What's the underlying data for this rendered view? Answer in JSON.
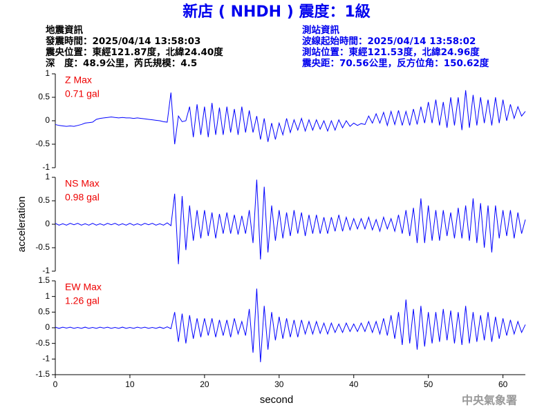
{
  "header": {
    "title": "新店 ( NHDH ) 震度：1級",
    "event": [
      "地震資訊",
      "發震時間：2025/04/14 13:58:03",
      "震央位置：東經121.87度，北緯24.40度",
      "深　度：48.9公里，芮氏規模：4.5"
    ],
    "station": [
      "測站資訊",
      "波線起始時間：2025/04/14 13:58:02",
      "測站位置：東經121.53度，北緯24.96度",
      "震央距：70.56公里，反方位角：150.62度"
    ]
  },
  "footer": "中央氣象署",
  "chart_data": [
    {
      "type": "line",
      "annotations": [
        "Z Max",
        "0.71 gal"
      ],
      "color": "#0000ff",
      "xlim": [
        0,
        63
      ],
      "ylim": [
        -1,
        1
      ],
      "yticks": [
        -1,
        -0.5,
        0,
        0.5,
        1
      ],
      "x": [
        0,
        0.5,
        1,
        1.5,
        2,
        2.5,
        3,
        3.5,
        4,
        4.5,
        5,
        5.5,
        6,
        6.5,
        7,
        7.5,
        8,
        8.5,
        9,
        9.5,
        10,
        10.5,
        11,
        11.5,
        12,
        12.5,
        13,
        13.5,
        14,
        14.5,
        15,
        15.5,
        16,
        16.5,
        17,
        17.5,
        18,
        18.5,
        19,
        19.5,
        20,
        20.5,
        21,
        21.5,
        22,
        22.5,
        23,
        23.5,
        24,
        24.5,
        25,
        25.5,
        26,
        26.5,
        27,
        27.5,
        28,
        28.5,
        29,
        29.5,
        30,
        30.5,
        31,
        31.5,
        32,
        32.5,
        33,
        33.5,
        34,
        34.5,
        35,
        35.5,
        36,
        36.5,
        37,
        37.5,
        38,
        38.5,
        39,
        39.5,
        40,
        40.5,
        41,
        41.5,
        42,
        42.5,
        43,
        43.5,
        44,
        44.5,
        45,
        45.5,
        46,
        46.5,
        47,
        47.5,
        48,
        48.5,
        49,
        49.5,
        50,
        50.5,
        51,
        51.5,
        52,
        52.5,
        53,
        53.5,
        54,
        54.5,
        55,
        55.5,
        56,
        56.5,
        57,
        57.5,
        58,
        58.5,
        59,
        59.5,
        60,
        60.5,
        61,
        61.5,
        62,
        62.5,
        63
      ],
      "values": [
        -0.08,
        -0.1,
        -0.11,
        -0.12,
        -0.11,
        -0.12,
        -0.1,
        -0.08,
        -0.05,
        -0.04,
        -0.03,
        0.03,
        0.05,
        0.06,
        0.07,
        0.08,
        0.07,
        0.06,
        0.07,
        0.06,
        0.06,
        0.05,
        0.06,
        0.05,
        0.04,
        0.03,
        0.02,
        0.01,
        0,
        -0.02,
        -0.03,
        0.6,
        -0.5,
        0.1,
        -0.02,
        0,
        0.3,
        -0.35,
        0.35,
        -0.3,
        0.3,
        -0.35,
        0.38,
        -0.3,
        0.28,
        -0.3,
        0.3,
        -0.25,
        0.25,
        -0.3,
        0.3,
        -0.25,
        0.22,
        -0.25,
        0.1,
        -0.4,
        0.05,
        -0.45,
        -0.05,
        -0.4,
        -0.05,
        -0.3,
        0.05,
        -0.25,
        0.02,
        -0.2,
        0.05,
        -0.22,
        0.02,
        -0.2,
        0.02,
        -0.18,
        0,
        -0.22,
        0,
        -0.2,
        0.02,
        -0.15,
        0,
        -0.12,
        -0.05,
        -0.1,
        -0.06,
        -0.08,
        0.1,
        -0.05,
        0.15,
        -0.05,
        0.18,
        -0.1,
        0.2,
        -0.08,
        0.22,
        -0.1,
        0.2,
        -0.1,
        0.25,
        -0.08,
        0.3,
        -0.05,
        0.4,
        -0.05,
        0.45,
        -0.1,
        0.4,
        -0.15,
        0.5,
        -0.1,
        0.5,
        -0.2,
        0.65,
        -0.15,
        0.55,
        -0.1,
        0.5,
        -0.05,
        0.45,
        -0.1,
        0.5,
        -0.05,
        0.45,
        0,
        0.35,
        0.05,
        0.3,
        0.1,
        0.2
      ]
    },
    {
      "type": "line",
      "annotations": [
        "NS Max",
        "0.98 gal"
      ],
      "ylabel": "acceleration",
      "color": "#0000ff",
      "xlim": [
        0,
        63
      ],
      "ylim": [
        -1,
        1
      ],
      "yticks": [
        -1,
        -0.5,
        0,
        0.5,
        1
      ],
      "x": [
        0,
        0.5,
        1,
        1.5,
        2,
        2.5,
        3,
        3.5,
        4,
        4.5,
        5,
        5.5,
        6,
        6.5,
        7,
        7.5,
        8,
        8.5,
        9,
        9.5,
        10,
        10.5,
        11,
        11.5,
        12,
        12.5,
        13,
        13.5,
        14,
        14.5,
        15,
        15.5,
        16,
        16.5,
        17,
        17.5,
        18,
        18.5,
        19,
        19.5,
        20,
        20.5,
        21,
        21.5,
        22,
        22.5,
        23,
        23.5,
        24,
        24.5,
        25,
        25.5,
        26,
        26.5,
        27,
        27.5,
        28,
        28.5,
        29,
        29.5,
        30,
        30.5,
        31,
        31.5,
        32,
        32.5,
        33,
        33.5,
        34,
        34.5,
        35,
        35.5,
        36,
        36.5,
        37,
        37.5,
        38,
        38.5,
        39,
        39.5,
        40,
        40.5,
        41,
        41.5,
        42,
        42.5,
        43,
        43.5,
        44,
        44.5,
        45,
        45.5,
        46,
        46.5,
        47,
        47.5,
        48,
        48.5,
        49,
        49.5,
        50,
        50.5,
        51,
        51.5,
        52,
        52.5,
        53,
        53.5,
        54,
        54.5,
        55,
        55.5,
        56,
        56.5,
        57,
        57.5,
        58,
        58.5,
        59,
        59.5,
        60,
        60.5,
        61,
        61.5,
        62,
        62.5,
        63
      ],
      "values": [
        0.02,
        -0.02,
        0.01,
        -0.02,
        0.02,
        -0.01,
        0.02,
        -0.02,
        0.01,
        -0.02,
        0.02,
        -0.02,
        0.01,
        -0.02,
        0.02,
        -0.01,
        0.02,
        -0.02,
        0.01,
        -0.02,
        0.02,
        -0.02,
        0.01,
        -0.02,
        0.02,
        -0.01,
        0.02,
        -0.02,
        0.01,
        -0.02,
        0.03,
        -0.03,
        0.65,
        -0.85,
        0.6,
        -0.55,
        0.4,
        -0.35,
        0.3,
        -0.3,
        0.3,
        -0.25,
        0.25,
        -0.3,
        0.22,
        -0.2,
        0.25,
        -0.2,
        0.2,
        -0.22,
        0.18,
        -0.2,
        0.3,
        -0.4,
        0.95,
        -0.75,
        0.8,
        -0.6,
        0.4,
        -0.35,
        0.3,
        -0.3,
        0.25,
        -0.25,
        0.3,
        -0.2,
        0.25,
        -0.25,
        0.2,
        -0.2,
        0.2,
        -0.2,
        0.15,
        -0.2,
        0.15,
        -0.15,
        0.2,
        -0.15,
        0.15,
        -0.12,
        0.12,
        -0.1,
        0.12,
        -0.1,
        0.15,
        -0.12,
        0.1,
        -0.15,
        0.15,
        -0.1,
        0.12,
        -0.15,
        0.2,
        -0.2,
        0.3,
        -0.25,
        0.35,
        -0.4,
        0.55,
        -0.4,
        0.4,
        -0.35,
        0.3,
        -0.35,
        0.3,
        -0.25,
        0.25,
        -0.3,
        0.35,
        -0.3,
        0.4,
        -0.35,
        0.55,
        -0.4,
        0.45,
        -0.5,
        0.4,
        -0.6,
        0.4,
        -0.3,
        0.3,
        -0.25,
        0.3,
        -0.3,
        0.25,
        -0.2,
        0.1
      ]
    },
    {
      "type": "line",
      "annotations": [
        "EW Max",
        "1.26 gal"
      ],
      "xlabel": "second",
      "color": "#0000ff",
      "xlim": [
        0,
        63
      ],
      "xticks": [
        0,
        10,
        20,
        30,
        40,
        50,
        60
      ],
      "ylim": [
        -1.5,
        1.5
      ],
      "yticks": [
        -1.5,
        -1,
        -0.5,
        0,
        0.5,
        1,
        1.5
      ],
      "x": [
        0,
        0.5,
        1,
        1.5,
        2,
        2.5,
        3,
        3.5,
        4,
        4.5,
        5,
        5.5,
        6,
        6.5,
        7,
        7.5,
        8,
        8.5,
        9,
        9.5,
        10,
        10.5,
        11,
        11.5,
        12,
        12.5,
        13,
        13.5,
        14,
        14.5,
        15,
        15.5,
        16,
        16.5,
        17,
        17.5,
        18,
        18.5,
        19,
        19.5,
        20,
        20.5,
        21,
        21.5,
        22,
        22.5,
        23,
        23.5,
        24,
        24.5,
        25,
        25.5,
        26,
        26.5,
        27,
        27.5,
        28,
        28.5,
        29,
        29.5,
        30,
        30.5,
        31,
        31.5,
        32,
        32.5,
        33,
        33.5,
        34,
        34.5,
        35,
        35.5,
        36,
        36.5,
        37,
        37.5,
        38,
        38.5,
        39,
        39.5,
        40,
        40.5,
        41,
        41.5,
        42,
        42.5,
        43,
        43.5,
        44,
        44.5,
        45,
        45.5,
        46,
        46.5,
        47,
        47.5,
        48,
        48.5,
        49,
        49.5,
        50,
        50.5,
        51,
        51.5,
        52,
        52.5,
        53,
        53.5,
        54,
        54.5,
        55,
        55.5,
        56,
        56.5,
        57,
        57.5,
        58,
        58.5,
        59,
        59.5,
        60,
        60.5,
        61,
        61.5,
        62,
        62.5,
        63
      ],
      "values": [
        0.02,
        -0.02,
        0.02,
        -0.01,
        0.02,
        -0.02,
        0.01,
        -0.02,
        0.02,
        -0.02,
        0.01,
        -0.02,
        0.02,
        -0.01,
        0.02,
        -0.02,
        0.01,
        -0.02,
        0.02,
        -0.02,
        0.01,
        -0.02,
        0.02,
        -0.01,
        0.02,
        -0.02,
        0.01,
        -0.02,
        0.02,
        -0.02,
        0.03,
        -0.03,
        0.5,
        -0.45,
        0.45,
        -0.5,
        0.4,
        -0.35,
        0.3,
        -0.3,
        0.3,
        -0.25,
        0.3,
        -0.3,
        0.25,
        -0.25,
        0.25,
        -0.3,
        0.3,
        -0.2,
        0.2,
        -0.25,
        0.6,
        -0.8,
        1.25,
        -1.1,
        0.7,
        -0.7,
        0.5,
        -0.4,
        0.35,
        -0.35,
        0.3,
        -0.3,
        0.25,
        -0.3,
        0.25,
        -0.2,
        0.2,
        -0.2,
        0.2,
        -0.18,
        0.15,
        -0.2,
        0.15,
        -0.15,
        0.12,
        -0.15,
        0.15,
        -0.12,
        0.12,
        -0.12,
        0.15,
        -0.12,
        0.2,
        -0.15,
        0.2,
        -0.2,
        0.3,
        -0.25,
        0.4,
        -0.35,
        0.5,
        -0.55,
        0.9,
        -0.5,
        0.6,
        -0.7,
        0.7,
        -0.6,
        0.5,
        -0.5,
        0.5,
        -0.45,
        0.6,
        -0.4,
        0.55,
        -0.5,
        0.5,
        -0.55,
        0.7,
        -0.5,
        0.5,
        -0.45,
        0.4,
        -0.4,
        0.5,
        -0.45,
        0.35,
        -0.35,
        0.3,
        -0.25,
        0.25,
        -0.2,
        0.2,
        -0.15,
        0.1
      ]
    }
  ]
}
